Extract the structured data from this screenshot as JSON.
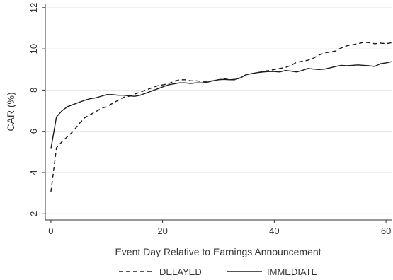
{
  "chart_data": {
    "type": "line",
    "xlabel": "Event Day Relative to Earnings Announcement",
    "ylabel": "CAR (%)",
    "xlim": [
      -1,
      61
    ],
    "ylim": [
      1.7,
      12.2
    ],
    "xticks": [
      0,
      20,
      40,
      60
    ],
    "yticks": [
      2,
      4,
      6,
      8,
      10,
      12
    ],
    "grid": "horizontal",
    "legend_position": "bottom",
    "series": [
      {
        "name": "DELAYED",
        "style": "dashed",
        "color": "#1a1a1a",
        "x": [
          0,
          1,
          2,
          3,
          4,
          5,
          6,
          7,
          8,
          9,
          10,
          11,
          12,
          13,
          14,
          15,
          16,
          17,
          18,
          19,
          20,
          21,
          22,
          23,
          24,
          25,
          26,
          27,
          28,
          29,
          30,
          31,
          32,
          33,
          34,
          35,
          36,
          37,
          38,
          39,
          40,
          41,
          42,
          43,
          44,
          45,
          46,
          47,
          48,
          49,
          50,
          51,
          52,
          53,
          54,
          55,
          56,
          57,
          58,
          59,
          60,
          61
        ],
        "y": [
          3.05,
          5.2,
          5.5,
          5.75,
          6.0,
          6.35,
          6.65,
          6.8,
          6.95,
          7.1,
          7.2,
          7.35,
          7.5,
          7.65,
          7.7,
          7.8,
          7.9,
          8.0,
          8.1,
          8.2,
          8.25,
          8.3,
          8.42,
          8.5,
          8.5,
          8.45,
          8.45,
          8.42,
          8.42,
          8.45,
          8.5,
          8.55,
          8.5,
          8.5,
          8.6,
          8.75,
          8.8,
          8.85,
          8.9,
          8.95,
          9.0,
          9.05,
          9.1,
          9.2,
          9.35,
          9.4,
          9.45,
          9.55,
          9.7,
          9.8,
          9.85,
          9.9,
          10.05,
          10.15,
          10.2,
          10.25,
          10.32,
          10.3,
          10.25,
          10.28,
          10.25,
          10.3
        ]
      },
      {
        "name": "IMMEDIATE",
        "style": "solid",
        "color": "#1a1a1a",
        "x": [
          0,
          1,
          2,
          3,
          4,
          5,
          6,
          7,
          8,
          9,
          10,
          11,
          12,
          13,
          14,
          15,
          16,
          17,
          18,
          19,
          20,
          21,
          22,
          23,
          24,
          25,
          26,
          27,
          28,
          29,
          30,
          31,
          32,
          33,
          34,
          35,
          36,
          37,
          38,
          39,
          40,
          41,
          42,
          43,
          44,
          45,
          46,
          47,
          48,
          49,
          50,
          51,
          52,
          53,
          54,
          55,
          56,
          57,
          58,
          59,
          60,
          61
        ],
        "y": [
          5.15,
          6.7,
          7.0,
          7.2,
          7.3,
          7.4,
          7.5,
          7.58,
          7.62,
          7.7,
          7.78,
          7.78,
          7.75,
          7.75,
          7.72,
          7.7,
          7.75,
          7.85,
          7.95,
          8.05,
          8.15,
          8.25,
          8.3,
          8.35,
          8.35,
          8.32,
          8.35,
          8.35,
          8.38,
          8.45,
          8.5,
          8.52,
          8.5,
          8.52,
          8.6,
          8.75,
          8.8,
          8.85,
          8.88,
          8.9,
          8.9,
          8.88,
          8.95,
          8.92,
          8.88,
          8.95,
          9.05,
          9.02,
          9.0,
          9.02,
          9.08,
          9.15,
          9.2,
          9.18,
          9.2,
          9.22,
          9.2,
          9.18,
          9.15,
          9.28,
          9.32,
          9.38
        ]
      }
    ]
  }
}
